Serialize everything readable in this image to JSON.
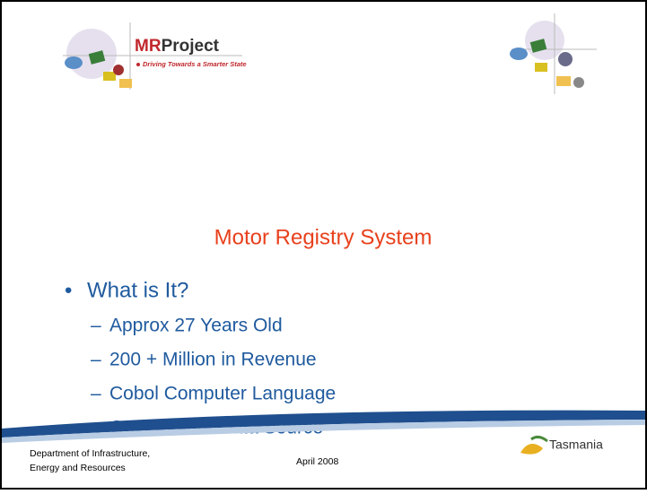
{
  "logo": {
    "prefix": "MR",
    "suffix": "Project",
    "tagline": "Driving Towards a Smarter State"
  },
  "title": "Motor Registry System",
  "bullet": "What is It?",
  "sub_bullets": [
    "Approx 27 Years Old",
    "200 + Million in Revenue",
    "Cobol Computer Language",
    "Government Data Source"
  ],
  "footer": {
    "department": [
      "Department of Infrastructure,",
      "Energy and Resources"
    ],
    "date": "April 2008",
    "brand": "Tasmania"
  }
}
